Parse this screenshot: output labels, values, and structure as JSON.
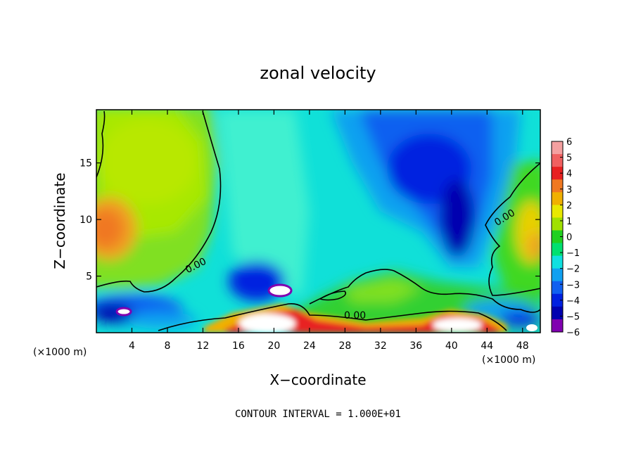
{
  "chart_data": {
    "type": "heatmap",
    "title": "zonal velocity",
    "xlabel": "X−coordinate",
    "ylabel": "Z−coordinate",
    "x_unit_left": "(×1000 m)",
    "x_unit_right": "(×1000 m)",
    "xlim": [
      0,
      50
    ],
    "ylim": [
      0,
      19.7
    ],
    "x_ticks": [
      4,
      8,
      12,
      16,
      20,
      24,
      28,
      32,
      36,
      40,
      44,
      48
    ],
    "y_ticks": [
      5,
      10,
      15
    ],
    "colorbar": {
      "ticks": [
        "6",
        "5",
        "4",
        "3",
        "2",
        "1",
        "0",
        "−1",
        "−2",
        "−3",
        "−4",
        "−5",
        "−6"
      ],
      "colors": [
        "#f4a0a0",
        "#f06060",
        "#e82020",
        "#f07820",
        "#f0b000",
        "#e8e800",
        "#a0e000",
        "#20d020",
        "#00e070",
        "#10e0e0",
        "#10a0f0",
        "#1060f0",
        "#0020e0",
        "#0000b0",
        "#8000b0"
      ]
    },
    "contour_labels": [
      "0.00",
      "0.00",
      "0.00"
    ],
    "footnote": "CONTOUR INTERVAL = 1.000E+01"
  }
}
